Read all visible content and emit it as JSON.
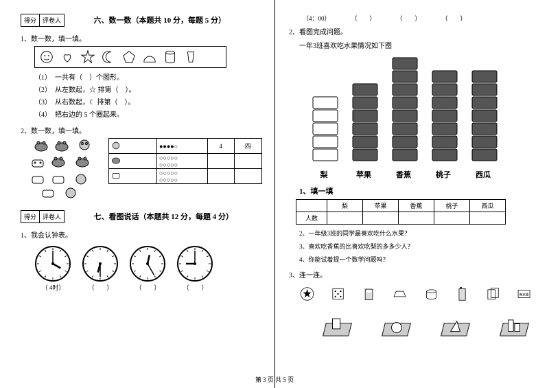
{
  "left": {
    "score_labels": [
      "得分",
      "评卷人"
    ],
    "section6_title": "六、数一数（本题共 10 分，每题 5 分）",
    "q1": "1、数一数，填一填。",
    "q1_lines": [
      "（1）　一共有（　）个图形。",
      "（2）　从左数起，☆ 排第（　）。",
      "（3）　从右数起，☾ 排第（　）。",
      "（4）　把右边的 5 个圈起来。"
    ],
    "q2": "2、数一数，填一填。",
    "count_header": [
      "4",
      "四"
    ],
    "dots_rows": [
      "●●●●○",
      "○○○○○",
      "○○○○○",
      "○○○○○",
      "○○○○○"
    ],
    "section7_title": "七、看图说话（本题共 12 分，每题 4 分）",
    "q7_1": "1、我会认钟表。",
    "clock_labels": [
      "（ 4时）",
      "（　　）",
      "（　　）",
      "（　　）"
    ],
    "clocks": [
      {
        "h": 4,
        "m": 0
      },
      {
        "h": 6,
        "m": 30
      },
      {
        "h": 12,
        "m": 25
      },
      {
        "h": 9,
        "m": 0
      }
    ]
  },
  "right": {
    "top_labels": [
      "（4：00）",
      "（　　）",
      "（　　）",
      "（　　）"
    ],
    "q2": "2、看图完成问题。",
    "q2_sub": "一年3班喜欢吃水果情况如下图",
    "bars": [
      {
        "label": "梨",
        "count": 5,
        "filled": false
      },
      {
        "label": "苹果",
        "count": 6,
        "filled": true
      },
      {
        "label": "香蕉",
        "count": 8,
        "filled": true
      },
      {
        "label": "桃子",
        "count": 7,
        "filled": true
      },
      {
        "label": "西瓜",
        "count": 7,
        "filled": true
      }
    ],
    "bar_color": "#555555",
    "sub1_title": "1、填一填",
    "tbl_headers": [
      "",
      "梨",
      "苹果",
      "香蕉",
      "桃子",
      "西瓜"
    ],
    "tbl_row_label": "人数",
    "qlines": [
      "2、一年级3班的同学最喜欢吃什么水果？",
      "3、喜欢吃香蕉的比喜欢吃梨的多多少人？",
      "4、你能试着提一个数学问题吗？"
    ],
    "q3": "3、连一连。"
  },
  "footer": "第 3 页 共 5 页"
}
